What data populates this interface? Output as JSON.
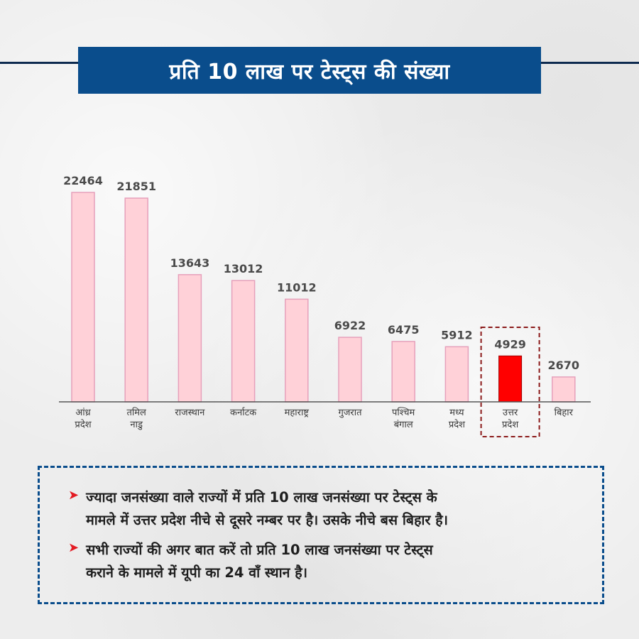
{
  "title": "प्रति 10 लाख पर टेस्ट्स की संख्या",
  "chart_data": {
    "type": "bar",
    "title": "प्रति 10 लाख पर टेस्ट्स की संख्या",
    "categories": [
      [
        "आंध्र",
        "प्रदेश"
      ],
      [
        "तमिल",
        "नाडु"
      ],
      [
        "राजस्थान"
      ],
      [
        "कर्नाटक"
      ],
      [
        "महाराष्ट्र"
      ],
      [
        "गुजरात"
      ],
      [
        "पश्चिम",
        "बंगाल"
      ],
      [
        "मध्य",
        "प्रदेश"
      ],
      [
        "उत्तर",
        "प्रदेश"
      ],
      [
        "बिहार"
      ]
    ],
    "values": [
      22464,
      21851,
      13643,
      13012,
      11012,
      6922,
      6475,
      5912,
      4929,
      2670
    ],
    "value_labels": [
      "22464",
      "21851",
      "13643",
      "13012",
      "11012",
      "6922",
      "6475",
      "5912",
      "4929",
      "2670"
    ],
    "highlight_index": 8,
    "bar_color": "#ffd1d8",
    "bar_border_color": "#e6a0bb",
    "highlight_color": "#ff0000",
    "highlight_box_color": "#8b1a1a",
    "ylim": [
      0,
      22464
    ],
    "grid": false,
    "legend": "none"
  },
  "notes": [
    {
      "lines": [
        "ज्यादा जनसंख्या वाले राज्यों में प्रति 10 लाख जनसंख्या पर टेस्ट्स के",
        "मामले में उत्तर प्रदेश नीचे से दूसरे नम्बर पर है। उसके नीचे बस बिहार है।"
      ]
    },
    {
      "lines": [
        "सभी राज्यों की अगर बात करें तो प्रति 10 लाख जनसंख्या पर टेस्ट्स",
        "कराने के मामले में यूपी का 24 वाँ स्थान है।"
      ]
    }
  ],
  "colors": {
    "banner": "#0a4d8c",
    "title_line": "#0d2a4f",
    "bullet": "#e31b23",
    "notes_border": "#0a4d8c"
  },
  "icons": {
    "bullet": "red-arrow-icon"
  }
}
